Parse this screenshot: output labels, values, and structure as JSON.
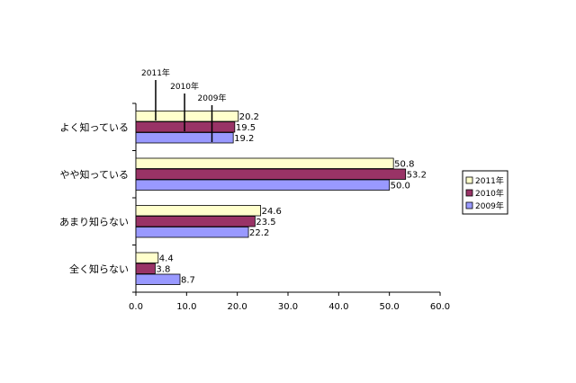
{
  "chart_data": {
    "type": "bar",
    "orientation": "horizontal",
    "categories": [
      "よく知っている",
      "やや知っている",
      "あまり知らない",
      "全く知らない"
    ],
    "series": [
      {
        "name": "2011年",
        "values": [
          20.2,
          50.8,
          24.6,
          4.4
        ],
        "color": "#FFFFCC"
      },
      {
        "name": "2010年",
        "values": [
          19.5,
          53.2,
          23.5,
          3.8
        ],
        "color": "#993366"
      },
      {
        "name": "2009年",
        "values": [
          19.2,
          50.0,
          22.2,
          8.7
        ],
        "color": "#9999FF"
      }
    ],
    "value_labels": [
      [
        "20.2",
        "50.8",
        "24.6",
        "4.4"
      ],
      [
        "19.5",
        "53.2",
        "23.5",
        "3.8"
      ],
      [
        "19.2",
        "50.0",
        "22.2",
        "8.7"
      ]
    ],
    "xlim": [
      0,
      60
    ],
    "x_ticks": [
      "0.0",
      "10.0",
      "20.0",
      "30.0",
      "40.0",
      "50.0",
      "60.0"
    ],
    "grid": false,
    "legend_position": "right",
    "callouts": [
      "2011年",
      "2010年",
      "2009年"
    ],
    "title": "",
    "xlabel": "",
    "ylabel": ""
  }
}
